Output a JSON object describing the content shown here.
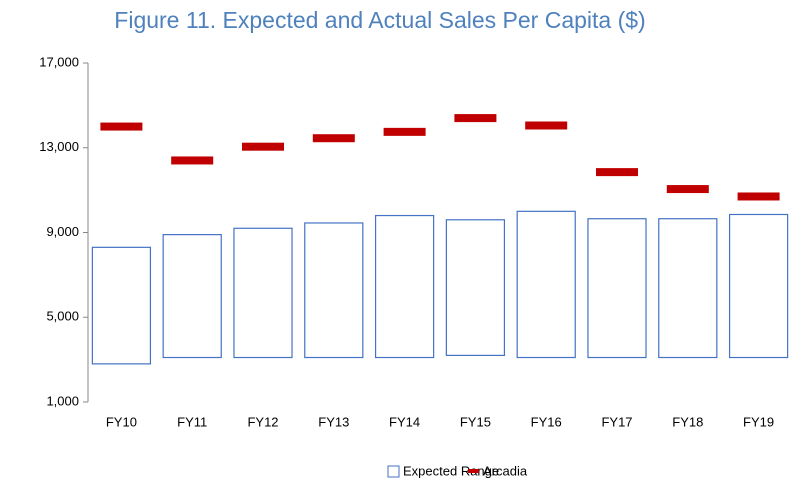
{
  "chart_data": {
    "type": "range-marker",
    "title": "Figure 11.  Expected and Actual Sales Per Capita ($)",
    "categories": [
      "FY10",
      "FY11",
      "FY12",
      "FY13",
      "FY14",
      "FY15",
      "FY16",
      "FY17",
      "FY18",
      "FY19"
    ],
    "series": [
      {
        "name": "Expected Range",
        "color": "#4472c4",
        "low": [
          2800,
          3100,
          3100,
          3100,
          3100,
          3200,
          3100,
          3100,
          3100,
          3100
        ],
        "high": [
          8300,
          8900,
          9200,
          9450,
          9800,
          9600,
          10000,
          9650,
          9650,
          9850
        ]
      },
      {
        "name": "Arcadia",
        "color": "#c00000",
        "values": [
          14000,
          12400,
          13050,
          13450,
          13750,
          14400,
          14050,
          11850,
          11050,
          10700
        ]
      }
    ],
    "ylim": [
      1000,
      17000
    ],
    "yticks": [
      {
        "value": 1000,
        "label": "1,000"
      },
      {
        "value": 5000,
        "label": "5,000"
      },
      {
        "value": 9000,
        "label": "9,000"
      },
      {
        "value": 13000,
        "label": "13,000"
      },
      {
        "value": 17000,
        "label": "17,000"
      }
    ],
    "grid": false,
    "legend": "bottom"
  }
}
